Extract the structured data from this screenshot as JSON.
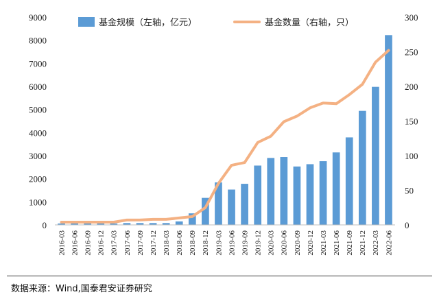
{
  "chart_data": {
    "type": "bar+line",
    "categories": [
      "2016-03",
      "2016-06",
      "2016-09",
      "2016-12",
      "2017-03",
      "2017-06",
      "2017-09",
      "2017-12",
      "2018-03",
      "2018-06",
      "2018-09",
      "2018-12",
      "2019-03",
      "2019-06",
      "2019-09",
      "2019-12",
      "2020-03",
      "2020-06",
      "2020-09",
      "2020-12",
      "2021-03",
      "2021-06",
      "2021-09",
      "2021-12",
      "2022-03",
      "2022-06"
    ],
    "series": [
      {
        "name": "基金规模（左轴，亿元）",
        "type": "bar",
        "axis": "left",
        "color": "#5b9bd5",
        "values": [
          60,
          60,
          60,
          60,
          60,
          80,
          80,
          80,
          80,
          150,
          500,
          1170,
          1840,
          1530,
          1780,
          2570,
          2900,
          2940,
          2530,
          2630,
          2760,
          3140,
          3790,
          4940,
          5980,
          8220
        ]
      },
      {
        "name": "基金数量（右轴，只）",
        "type": "line",
        "axis": "right",
        "color": "#f4b183",
        "values": [
          4,
          4,
          4,
          4,
          4,
          7,
          7,
          8,
          8,
          10,
          12,
          25,
          60,
          86,
          90,
          119,
          128,
          149,
          157,
          169,
          176,
          175,
          188,
          203,
          235,
          252
        ]
      }
    ],
    "yleft": {
      "min": 0,
      "max": 9000,
      "ticks": [
        0,
        1000,
        2000,
        3000,
        4000,
        5000,
        6000,
        7000,
        8000,
        9000
      ]
    },
    "yright": {
      "min": 0,
      "max": 300,
      "ticks": [
        0,
        50,
        100,
        150,
        200,
        250,
        300
      ]
    },
    "grid": false,
    "legend": "top-center"
  },
  "source": "数据来源：Wind,国泰君安证券研究"
}
